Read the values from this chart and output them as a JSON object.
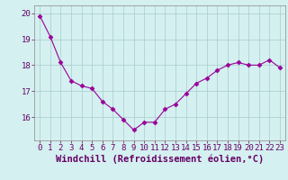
{
  "hours": [
    0,
    1,
    2,
    3,
    4,
    5,
    6,
    7,
    8,
    9,
    10,
    11,
    12,
    13,
    14,
    15,
    16,
    17,
    18,
    19,
    20,
    21,
    22,
    23
  ],
  "values": [
    19.9,
    19.1,
    18.1,
    17.4,
    17.2,
    17.1,
    16.6,
    16.3,
    15.9,
    15.5,
    15.8,
    15.8,
    16.3,
    16.5,
    16.9,
    17.3,
    17.5,
    17.8,
    18.0,
    18.1,
    18.0,
    18.0,
    18.2,
    17.9
  ],
  "line_color": "#990099",
  "marker": "D",
  "marker_size": 2.5,
  "bg_color": "#d4f0f0",
  "grid_color": "#aacccc",
  "xlabel": "Windchill (Refroidissement éolien,°C)",
  "xlabel_color": "#660066",
  "xlabel_fontsize": 7.5,
  "tick_color": "#660066",
  "tick_fontsize": 6.5,
  "ylim": [
    15.1,
    20.3
  ],
  "yticks": [
    16,
    17,
    18,
    19,
    20
  ],
  "spine_color": "#888888"
}
